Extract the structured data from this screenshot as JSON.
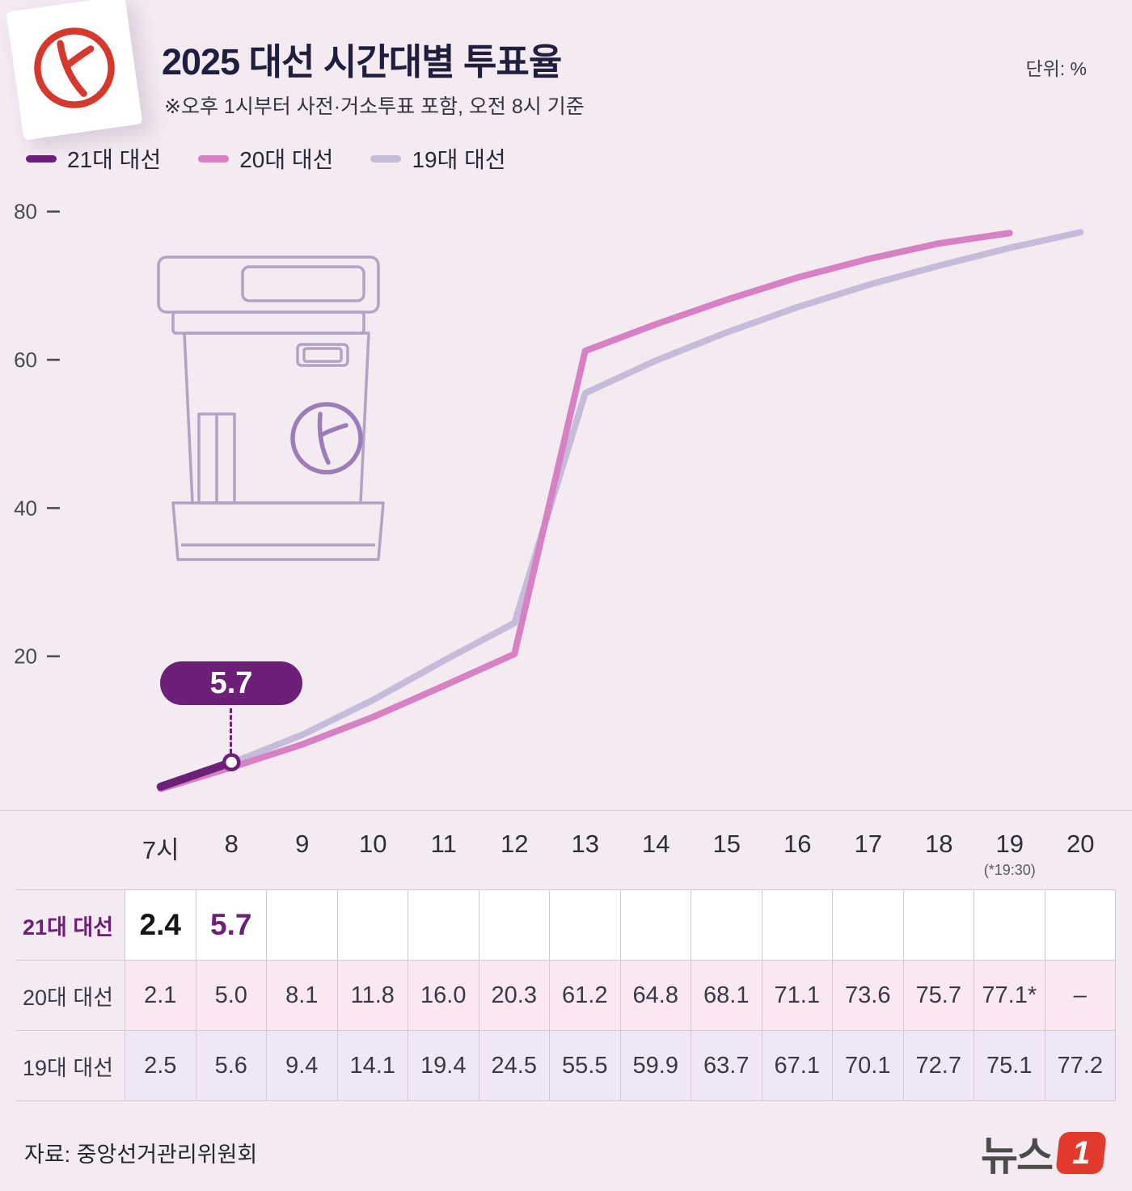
{
  "header": {
    "title": "2025 대선 시간대별 투표율",
    "subtitle": "※오후 1시부터 사전·거소투표 포함, 오전 8시 기준",
    "unit_label": "단위: %"
  },
  "legend": [
    {
      "label": "21대 대선",
      "color": "#6d2077"
    },
    {
      "label": "20대 대선",
      "color": "#d780c4"
    },
    {
      "label": "19대 대선",
      "color": "#c6bcd9"
    }
  ],
  "callout": {
    "value": "5.7",
    "series": 0,
    "index": 1
  },
  "chart_data": {
    "type": "line",
    "x": [
      7,
      8,
      9,
      10,
      11,
      12,
      13,
      14,
      15,
      16,
      17,
      18,
      19,
      20
    ],
    "x_labels": [
      "7시",
      "8",
      "9",
      "10",
      "11",
      "12",
      "13",
      "14",
      "15",
      "16",
      "17",
      "18",
      "19",
      "20"
    ],
    "x_note": {
      "index": 12,
      "text": "(*19:30)"
    },
    "ylabel": "%",
    "ylim": [
      0,
      85
    ],
    "yticks": [
      20,
      40,
      60,
      80
    ],
    "grid": false,
    "legend_position": "top-left",
    "series": [
      {
        "name": "21대 대선",
        "color": "#6d2077",
        "width": 10,
        "values": [
          2.4,
          5.7,
          null,
          null,
          null,
          null,
          null,
          null,
          null,
          null,
          null,
          null,
          null,
          null
        ]
      },
      {
        "name": "20대 대선",
        "color": "#d780c4",
        "width": 8,
        "values": [
          2.1,
          5.0,
          8.1,
          11.8,
          16.0,
          20.3,
          61.2,
          64.8,
          68.1,
          71.1,
          73.6,
          75.7,
          77.1,
          null
        ]
      },
      {
        "name": "19대 대선",
        "color": "#c6bcd9",
        "width": 8,
        "values": [
          2.5,
          5.6,
          9.4,
          14.1,
          19.4,
          24.5,
          55.5,
          59.9,
          63.7,
          67.1,
          70.1,
          72.7,
          75.1,
          77.2
        ]
      }
    ]
  },
  "table": {
    "hour_headers": [
      "7시",
      "8",
      "9",
      "10",
      "11",
      "12",
      "13",
      "14",
      "15",
      "16",
      "17",
      "18",
      "19",
      "20"
    ],
    "hour_note_col": 12,
    "hour_note": "(*19:30)",
    "rows": [
      {
        "label": "21대 대선",
        "values": [
          "2.4",
          "5.7",
          "",
          "",
          "",
          "",
          "",
          "",
          "",
          "",
          "",
          "",
          "",
          ""
        ]
      },
      {
        "label": "20대 대선",
        "values": [
          "2.1",
          "5.0",
          "8.1",
          "11.8",
          "16.0",
          "20.3",
          "61.2",
          "64.8",
          "68.1",
          "71.1",
          "73.6",
          "75.7",
          "77.1*",
          "–"
        ]
      },
      {
        "label": "19대 대선",
        "values": [
          "2.5",
          "5.6",
          "9.4",
          "14.1",
          "19.4",
          "24.5",
          "55.5",
          "59.9",
          "63.7",
          "67.1",
          "70.1",
          "72.7",
          "75.1",
          "77.2"
        ]
      }
    ]
  },
  "footer": {
    "source": "자료: 중앙선거관리위원회",
    "logo_text": "뉴스",
    "logo_num": "1"
  }
}
